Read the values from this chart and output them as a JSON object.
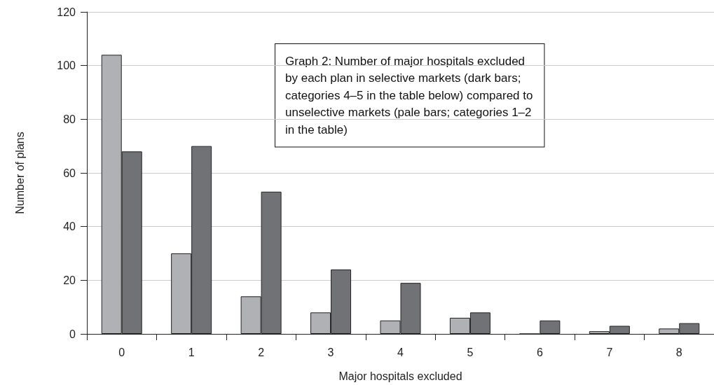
{
  "chart_data": {
    "type": "bar",
    "xlabel": "Major hospitals excluded",
    "ylabel": "Number of plans",
    "categories": [
      "0",
      "1",
      "2",
      "3",
      "4",
      "5",
      "6",
      "7",
      "8"
    ],
    "series": [
      {
        "color": "#b0b1b4",
        "values": [
          104,
          30,
          14,
          8,
          5,
          6,
          0,
          1,
          2
        ]
      },
      {
        "color": "#717276",
        "values": [
          68,
          70,
          53,
          24,
          19,
          8,
          5,
          3,
          4
        ]
      }
    ],
    "ylim": [
      0,
      120
    ],
    "yticks": [
      0,
      20,
      40,
      60,
      80,
      100,
      120
    ],
    "grid": "y",
    "annotations": [
      "Graph 2: Number of major hospitals excluded\nby each plan in selective markets (dark bars;\ncategories 4–5 in the table below) compared to\nunselective markets (pale bars; categories 1–2\nin the table)"
    ]
  }
}
